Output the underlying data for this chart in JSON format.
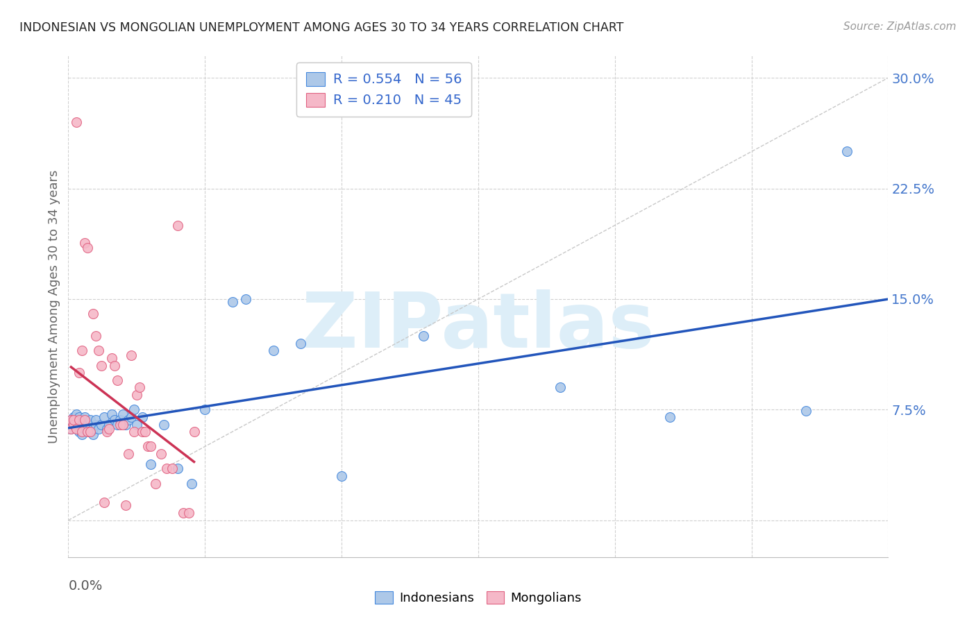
{
  "title": "INDONESIAN VS MONGOLIAN UNEMPLOYMENT AMONG AGES 30 TO 34 YEARS CORRELATION CHART",
  "source": "Source: ZipAtlas.com",
  "ylabel": "Unemployment Among Ages 30 to 34 years",
  "xlim": [
    0.0,
    0.3
  ],
  "ylim": [
    -0.025,
    0.315
  ],
  "yticks": [
    0.0,
    0.075,
    0.15,
    0.225,
    0.3
  ],
  "ytick_labels": [
    "",
    "7.5%",
    "15.0%",
    "22.5%",
    "30.0%"
  ],
  "xtick_positions": [
    0.0,
    0.05,
    0.1,
    0.15,
    0.2,
    0.25,
    0.3
  ],
  "grid_color": "#d0d0d0",
  "background_color": "#ffffff",
  "indonesian_fill_color": "#adc8e8",
  "indonesian_edge_color": "#4488dd",
  "mongolian_fill_color": "#f5b8c8",
  "mongolian_edge_color": "#e06080",
  "indonesian_line_color": "#2255bb",
  "mongolian_line_color": "#cc3355",
  "diagonal_color": "#c8c8c8",
  "title_color": "#222222",
  "source_color": "#999999",
  "ylabel_color": "#666666",
  "tick_label_color": "#4477cc",
  "xlabel_color": "#555555",
  "legend_text_color": "#3366cc",
  "watermark_text": "ZIPatlas",
  "watermark_color": "#ddeef8",
  "indonesian_x": [
    0.001,
    0.001,
    0.002,
    0.002,
    0.003,
    0.003,
    0.003,
    0.004,
    0.004,
    0.004,
    0.005,
    0.005,
    0.005,
    0.006,
    0.006,
    0.006,
    0.007,
    0.007,
    0.008,
    0.008,
    0.008,
    0.009,
    0.009,
    0.01,
    0.01,
    0.011,
    0.012,
    0.013,
    0.014,
    0.015,
    0.016,
    0.017,
    0.018,
    0.019,
    0.02,
    0.021,
    0.022,
    0.023,
    0.024,
    0.025,
    0.027,
    0.03,
    0.035,
    0.04,
    0.045,
    0.05,
    0.06,
    0.065,
    0.075,
    0.085,
    0.1,
    0.13,
    0.18,
    0.22,
    0.27,
    0.285
  ],
  "indonesian_y": [
    0.062,
    0.068,
    0.065,
    0.07,
    0.062,
    0.068,
    0.072,
    0.06,
    0.065,
    0.07,
    0.058,
    0.065,
    0.068,
    0.062,
    0.065,
    0.07,
    0.06,
    0.065,
    0.062,
    0.065,
    0.068,
    0.058,
    0.062,
    0.065,
    0.068,
    0.062,
    0.065,
    0.07,
    0.062,
    0.065,
    0.072,
    0.068,
    0.065,
    0.068,
    0.072,
    0.065,
    0.068,
    0.07,
    0.075,
    0.065,
    0.07,
    0.038,
    0.065,
    0.035,
    0.025,
    0.075,
    0.148,
    0.15,
    0.115,
    0.12,
    0.03,
    0.125,
    0.09,
    0.07,
    0.074,
    0.25
  ],
  "mongolian_x": [
    0.001,
    0.001,
    0.002,
    0.002,
    0.003,
    0.003,
    0.004,
    0.004,
    0.005,
    0.005,
    0.006,
    0.006,
    0.007,
    0.007,
    0.008,
    0.009,
    0.01,
    0.011,
    0.012,
    0.013,
    0.014,
    0.015,
    0.016,
    0.017,
    0.018,
    0.019,
    0.02,
    0.021,
    0.022,
    0.023,
    0.024,
    0.025,
    0.026,
    0.027,
    0.028,
    0.029,
    0.03,
    0.032,
    0.034,
    0.036,
    0.038,
    0.04,
    0.042,
    0.044,
    0.046
  ],
  "mongolian_y": [
    0.062,
    0.068,
    0.065,
    0.068,
    0.27,
    0.062,
    0.068,
    0.1,
    0.06,
    0.115,
    0.068,
    0.188,
    0.06,
    0.185,
    0.06,
    0.14,
    0.125,
    0.115,
    0.105,
    0.012,
    0.06,
    0.062,
    0.11,
    0.105,
    0.095,
    0.065,
    0.065,
    0.01,
    0.045,
    0.112,
    0.06,
    0.085,
    0.09,
    0.06,
    0.06,
    0.05,
    0.05,
    0.025,
    0.045,
    0.035,
    0.035,
    0.2,
    0.005,
    0.005,
    0.06
  ],
  "legend_r1": "R = 0.554",
  "legend_n1": "N = 56",
  "legend_r2": "R = 0.210",
  "legend_n2": "N = 45"
}
